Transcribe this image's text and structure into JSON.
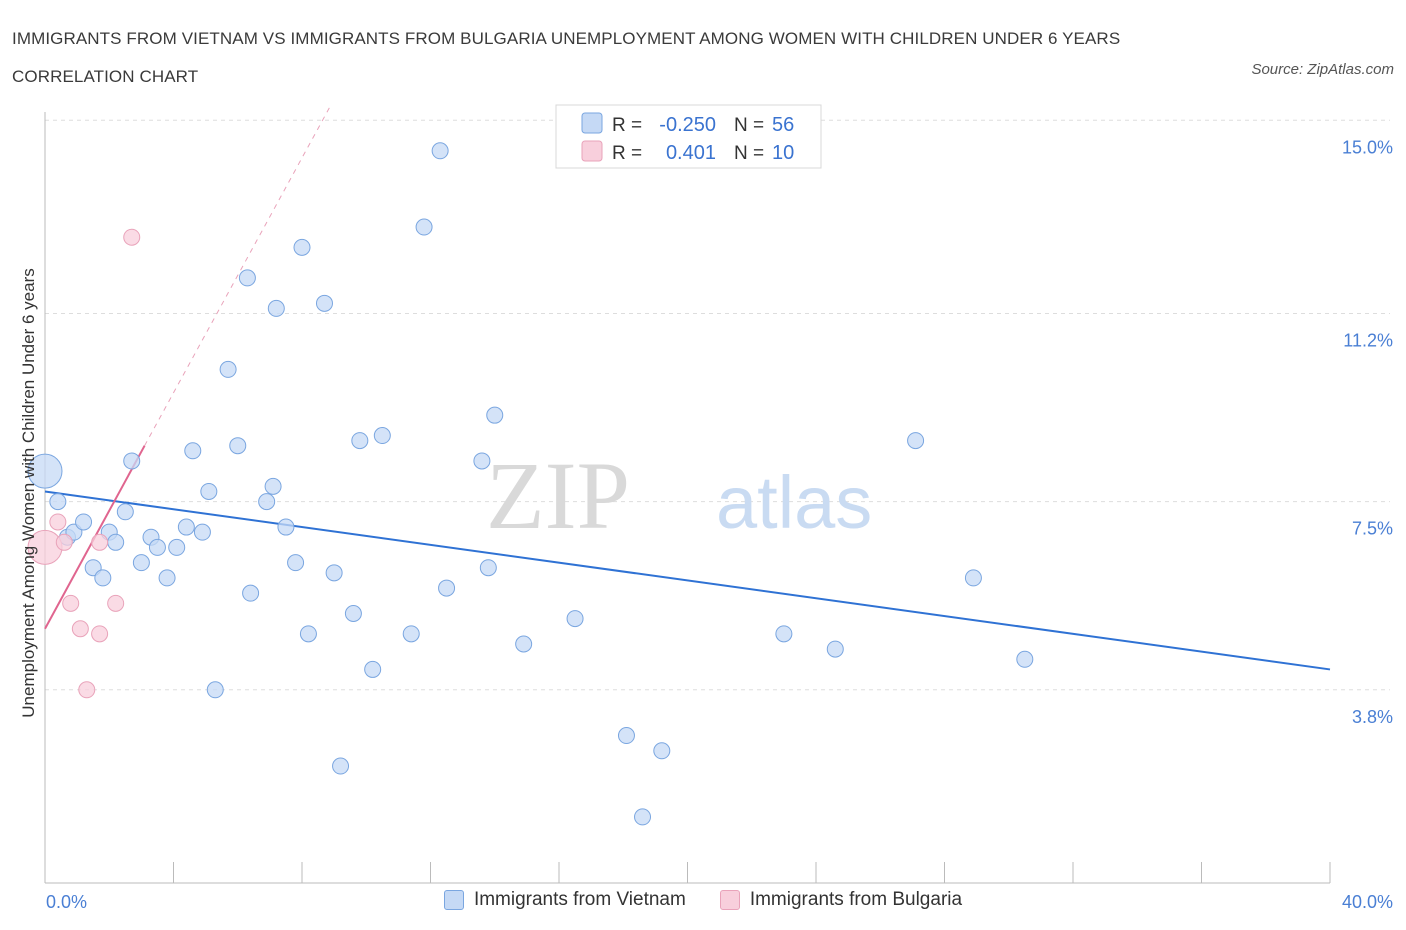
{
  "header": {
    "title": "IMMIGRANTS FROM VIETNAM VS IMMIGRANTS FROM BULGARIA UNEMPLOYMENT AMONG WOMEN WITH CHILDREN UNDER 6 YEARS CORRELATION CHART",
    "source": "Source: ZipAtlas.com"
  },
  "colors": {
    "vietnam_fill": "#c5d9f5",
    "vietnam_stroke": "#7aa6e0",
    "vietnam_line": "#2f72d4",
    "bulgaria_fill": "#f8cfdc",
    "bulgaria_stroke": "#e9a3ba",
    "bulgaria_line": "#e0658f",
    "grid": "#dddddd",
    "tick_text": "#4a7fd4"
  },
  "legend_top": {
    "rows": [
      {
        "r_label": "R =",
        "r_value": "-0.250",
        "n_label": "N =",
        "n_value": "56"
      },
      {
        "r_label": "R =",
        "r_value": "0.401",
        "n_label": "N =",
        "n_value": "10"
      }
    ]
  },
  "legend_bottom": {
    "items": [
      {
        "label": "Immigrants from Vietnam"
      },
      {
        "label": "Immigrants from Bulgaria"
      }
    ]
  },
  "watermark": {
    "zip": "ZIP",
    "atlas": "atlas"
  },
  "chart_data": {
    "type": "scatter",
    "title": "IMMIGRANTS FROM VIETNAM VS IMMIGRANTS FROM BULGARIA UNEMPLOYMENT AMONG WOMEN WITH CHILDREN UNDER 6 YEARS CORRELATION CHART",
    "xlabel": "",
    "ylabel": "Unemployment Among Women with Children Under 6 years",
    "xlim": [
      0,
      40
    ],
    "ylim": [
      0,
      15.3
    ],
    "x_tick_labels": [
      "0.0%",
      "40.0%"
    ],
    "y_ticks": [
      3.8,
      7.5,
      11.2,
      15.0
    ],
    "y_tick_labels": [
      "3.8%",
      "7.5%",
      "11.2%",
      "15.0%"
    ],
    "grid": true,
    "series": [
      {
        "name": "Immigrants from Vietnam",
        "R": -0.25,
        "N": 56,
        "trend": {
          "x": [
            0,
            40
          ],
          "y": [
            7.7,
            4.2
          ]
        },
        "points": [
          {
            "x": 0.0,
            "y": 8.1,
            "big": true
          },
          {
            "x": 0.4,
            "y": 7.5
          },
          {
            "x": 0.7,
            "y": 6.8
          },
          {
            "x": 0.9,
            "y": 6.9
          },
          {
            "x": 1.2,
            "y": 7.1
          },
          {
            "x": 1.5,
            "y": 6.2
          },
          {
            "x": 1.8,
            "y": 6.0
          },
          {
            "x": 2.0,
            "y": 6.9
          },
          {
            "x": 2.2,
            "y": 6.7
          },
          {
            "x": 2.5,
            "y": 7.3
          },
          {
            "x": 2.7,
            "y": 8.3
          },
          {
            "x": 3.0,
            "y": 6.3
          },
          {
            "x": 3.3,
            "y": 6.8
          },
          {
            "x": 3.5,
            "y": 6.6
          },
          {
            "x": 3.8,
            "y": 6.0
          },
          {
            "x": 4.1,
            "y": 6.6
          },
          {
            "x": 4.4,
            "y": 7.0
          },
          {
            "x": 4.6,
            "y": 8.5
          },
          {
            "x": 4.9,
            "y": 6.9
          },
          {
            "x": 5.1,
            "y": 7.7
          },
          {
            "x": 5.3,
            "y": 3.8
          },
          {
            "x": 5.7,
            "y": 10.1
          },
          {
            "x": 6.0,
            "y": 8.6
          },
          {
            "x": 6.3,
            "y": 11.9
          },
          {
            "x": 6.4,
            "y": 5.7
          },
          {
            "x": 6.9,
            "y": 7.5
          },
          {
            "x": 7.1,
            "y": 7.8
          },
          {
            "x": 7.2,
            "y": 11.3
          },
          {
            "x": 7.5,
            "y": 7.0
          },
          {
            "x": 7.8,
            "y": 6.3
          },
          {
            "x": 8.0,
            "y": 12.5
          },
          {
            "x": 8.2,
            "y": 4.9
          },
          {
            "x": 8.7,
            "y": 11.4
          },
          {
            "x": 9.0,
            "y": 6.1
          },
          {
            "x": 9.2,
            "y": 2.3
          },
          {
            "x": 9.6,
            "y": 5.3
          },
          {
            "x": 9.8,
            "y": 8.7
          },
          {
            "x": 10.2,
            "y": 4.2
          },
          {
            "x": 10.5,
            "y": 8.8
          },
          {
            "x": 11.4,
            "y": 4.9
          },
          {
            "x": 11.8,
            "y": 12.9
          },
          {
            "x": 12.3,
            "y": 14.4
          },
          {
            "x": 12.5,
            "y": 5.8
          },
          {
            "x": 13.6,
            "y": 8.3
          },
          {
            "x": 13.8,
            "y": 6.2
          },
          {
            "x": 14.0,
            "y": 9.2
          },
          {
            "x": 14.9,
            "y": 4.7
          },
          {
            "x": 16.5,
            "y": 5.2
          },
          {
            "x": 18.1,
            "y": 2.9
          },
          {
            "x": 18.6,
            "y": 1.3
          },
          {
            "x": 19.2,
            "y": 2.6
          },
          {
            "x": 23.0,
            "y": 4.9
          },
          {
            "x": 24.6,
            "y": 4.6
          },
          {
            "x": 27.1,
            "y": 8.7
          },
          {
            "x": 28.9,
            "y": 6.0
          },
          {
            "x": 30.5,
            "y": 4.4
          }
        ]
      },
      {
        "name": "Immigrants from Bulgaria",
        "R": 0.401,
        "N": 10,
        "trend": {
          "x": [
            0,
            3.1
          ],
          "y": [
            5.0,
            8.6
          ]
        },
        "trend_dashed": {
          "x": [
            3.1,
            8.9
          ],
          "y": [
            8.6,
            15.3
          ]
        },
        "points": [
          {
            "x": 0.0,
            "y": 6.6,
            "big": true
          },
          {
            "x": 0.4,
            "y": 7.1
          },
          {
            "x": 0.6,
            "y": 6.7
          },
          {
            "x": 0.8,
            "y": 5.5
          },
          {
            "x": 1.1,
            "y": 5.0
          },
          {
            "x": 1.3,
            "y": 3.8
          },
          {
            "x": 1.7,
            "y": 4.9
          },
          {
            "x": 1.7,
            "y": 6.7
          },
          {
            "x": 2.2,
            "y": 5.5
          },
          {
            "x": 2.7,
            "y": 12.7
          }
        ]
      }
    ]
  }
}
